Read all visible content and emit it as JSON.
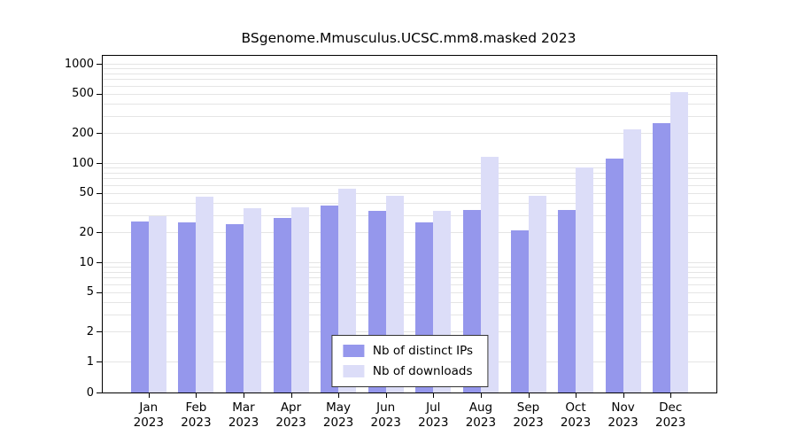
{
  "chart_data": {
    "type": "bar",
    "title": "BSgenome.Mmusculus.UCSC.mm8.masked 2023",
    "scale": "log",
    "year": "2023",
    "months": [
      "Jan",
      "Feb",
      "Mar",
      "Apr",
      "May",
      "Jun",
      "Jul",
      "Aug",
      "Sep",
      "Oct",
      "Nov",
      "Dec"
    ],
    "categories": [
      "Jan 2023",
      "Feb 2023",
      "Mar 2023",
      "Apr 2023",
      "May 2023",
      "Jun 2023",
      "Jul 2023",
      "Aug 2023",
      "Sep 2023",
      "Oct 2023",
      "Nov 2023",
      "Dec 2023"
    ],
    "series": [
      {
        "name": "Nb of distinct IPs",
        "color": "#9597ec",
        "values": [
          26,
          25,
          24,
          28,
          37,
          33,
          25,
          34,
          21,
          34,
          110,
          250
        ]
      },
      {
        "name": "Nb of downloads",
        "color": "#dcddf8",
        "values": [
          29,
          46,
          35,
          36,
          55,
          47,
          33,
          115,
          47,
          90,
          220,
          520
        ]
      }
    ],
    "yticks": [
      0,
      1,
      2,
      5,
      10,
      20,
      50,
      100,
      200,
      500,
      1000
    ],
    "ylim": [
      0,
      1000
    ],
    "grid": true,
    "legend_position": "bottom-center"
  }
}
